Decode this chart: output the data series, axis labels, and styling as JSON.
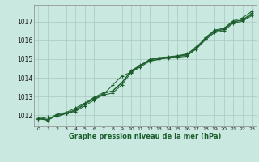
{
  "title": "Graphe pression niveau de la mer (hPa)",
  "background_color": "#c8e8e0",
  "plot_bg_color": "#c8e8e0",
  "grid_color": "#a8c8c0",
  "line_color": "#1a5c2a",
  "xlim": [
    -0.5,
    23.5
  ],
  "ylim": [
    1011.4,
    1017.9
  ],
  "xticks": [
    0,
    1,
    2,
    3,
    4,
    5,
    6,
    7,
    8,
    9,
    10,
    11,
    12,
    13,
    14,
    15,
    16,
    17,
    18,
    19,
    20,
    21,
    22,
    23
  ],
  "yticks": [
    1012,
    1013,
    1014,
    1015,
    1016,
    1017
  ],
  "series": [
    [
      1011.8,
      1011.9,
      1011.9,
      1012.1,
      1012.2,
      1012.5,
      1012.8,
      1013.1,
      1013.6,
      1014.1,
      1014.3,
      1014.65,
      1014.9,
      1015.0,
      1015.05,
      1015.1,
      1015.15,
      1015.55,
      1016.15,
      1016.55,
      1016.65,
      1017.05,
      1017.2,
      1017.55
    ],
    [
      1011.8,
      1011.75,
      1012.0,
      1012.1,
      1012.3,
      1012.6,
      1012.9,
      1013.15,
      1013.3,
      1013.75,
      1014.35,
      1014.65,
      1014.95,
      1015.05,
      1015.1,
      1015.15,
      1015.25,
      1015.65,
      1016.1,
      1016.5,
      1016.6,
      1017.0,
      1017.1,
      1017.45
    ],
    [
      1011.85,
      1011.78,
      1012.05,
      1012.15,
      1012.38,
      1012.65,
      1012.95,
      1013.2,
      1013.28,
      1013.72,
      1014.38,
      1014.68,
      1014.98,
      1015.08,
      1015.12,
      1015.18,
      1015.28,
      1015.58,
      1016.08,
      1016.48,
      1016.58,
      1016.98,
      1017.08,
      1017.38
    ],
    [
      1011.82,
      1011.72,
      1011.98,
      1012.08,
      1012.25,
      1012.58,
      1012.88,
      1013.08,
      1013.18,
      1013.62,
      1014.28,
      1014.58,
      1014.88,
      1014.98,
      1015.08,
      1015.13,
      1015.22,
      1015.52,
      1016.02,
      1016.42,
      1016.52,
      1016.92,
      1017.02,
      1017.32
    ]
  ]
}
